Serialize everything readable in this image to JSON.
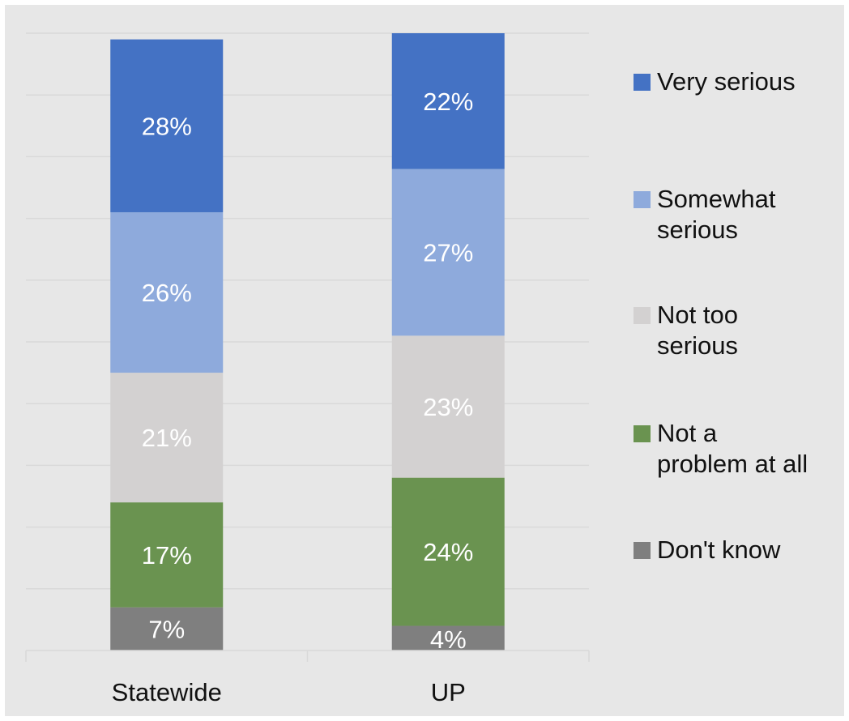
{
  "chart_data": {
    "type": "bar",
    "stacked": true,
    "orientation": "vertical",
    "categories": [
      "Statewide",
      "UP"
    ],
    "ylim": [
      0,
      100
    ],
    "grid": true,
    "legend_position": "right",
    "series": [
      {
        "name": "Don't know",
        "values": [
          7,
          4
        ],
        "labels": [
          "7%",
          "4%"
        ],
        "color": "#7f7f7f"
      },
      {
        "name": "Not a problem at all",
        "values": [
          17,
          24
        ],
        "labels": [
          "17%",
          "24%"
        ],
        "color": "#6a9350"
      },
      {
        "name": "Not too serious",
        "values": [
          21,
          23
        ],
        "labels": [
          "21%",
          "23%"
        ],
        "color": "#d3d1d1"
      },
      {
        "name": "Somewhat serious",
        "values": [
          26,
          27
        ],
        "labels": [
          "26%",
          "27%"
        ],
        "color": "#8eaadc"
      },
      {
        "name": "Very serious",
        "values": [
          28,
          22
        ],
        "labels": [
          "28%",
          "22%"
        ],
        "color": "#4472c4"
      }
    ],
    "legend_order": [
      "Very serious",
      "Somewhat serious",
      "Not too serious",
      "Not a problem at all",
      "Don't know"
    ],
    "colors": {
      "background": "#e7e7e7",
      "gridline": "#d9d9d9",
      "data_label": "#ffffff",
      "text": "#111111"
    }
  }
}
